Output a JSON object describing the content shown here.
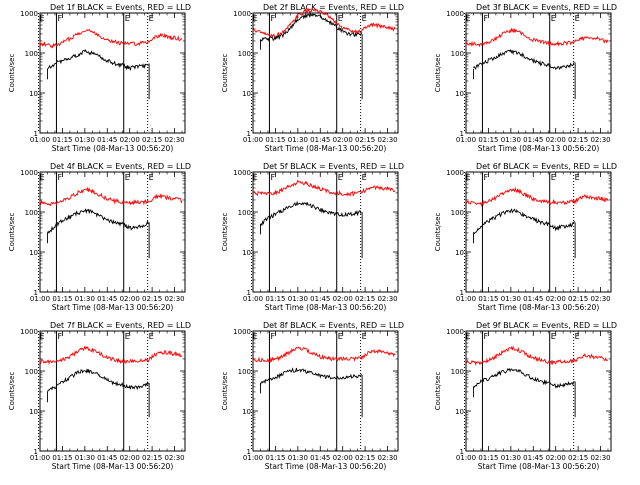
{
  "chart_data": {
    "type": "line",
    "ylabel": "Counts/sec",
    "xlabel": "Start Time (08-Mar-13 00:56:20)",
    "y_scale": "log",
    "ylim": [
      1,
      1000
    ],
    "y_ticks": [
      "1",
      "10",
      "100",
      "1000"
    ],
    "x_ticks": [
      "01:00",
      "01:15",
      "01:30",
      "01:45",
      "02:00",
      "02:15",
      "02:30"
    ],
    "xlim_minutes_after_0100": [
      0,
      97
    ],
    "colors": {
      "events": "#000000",
      "lld": "#ff0000"
    },
    "markers": [
      {
        "label": "E",
        "time": "00:59",
        "style": "dotted"
      },
      {
        "label": "F",
        "time": "01:11",
        "style": "solid"
      },
      {
        "label": "E",
        "time": "01:56",
        "style": "solid"
      },
      {
        "label": "E",
        "time": "02:12",
        "style": "dotted"
      }
    ],
    "panels": [
      {
        "title": "Det 1f BLACK = Events, RED = LLD",
        "time": [
          "01:00",
          "01:05",
          "01:10",
          "01:15",
          "01:20",
          "01:25",
          "01:30",
          "01:35",
          "01:40",
          "01:45",
          "01:50",
          "01:55",
          "02:00",
          "02:05",
          "02:10",
          "02:13",
          "02:15",
          "02:20",
          "02:25",
          "02:30",
          "02:35"
        ],
        "lld": [
          175,
          160,
          150,
          185,
          230,
          300,
          380,
          340,
          270,
          215,
          190,
          175,
          170,
          175,
          185,
          190,
          230,
          280,
          260,
          240,
          220
        ],
        "events": [
          null,
          40,
          55,
          65,
          75,
          90,
          110,
          100,
          80,
          65,
          55,
          50,
          42,
          45,
          48,
          55,
          null,
          null,
          null,
          null,
          null
        ]
      },
      {
        "title": "Det 2f BLACK = Events, RED = LLD",
        "time": [
          "01:00",
          "01:05",
          "01:10",
          "01:15",
          "01:20",
          "01:25",
          "01:30",
          "01:35",
          "01:40",
          "01:45",
          "01:50",
          "01:55",
          "02:00",
          "02:05",
          "02:10",
          "02:13",
          "02:15",
          "02:20",
          "02:25",
          "02:30",
          "02:35"
        ],
        "lld": [
          380,
          330,
          280,
          270,
          330,
          500,
          850,
          1100,
          1200,
          1050,
          850,
          600,
          420,
          380,
          330,
          360,
          420,
          500,
          480,
          440,
          400
        ],
        "events": [
          null,
          220,
          230,
          230,
          280,
          420,
          700,
          850,
          900,
          800,
          650,
          480,
          340,
          300,
          280,
          300,
          null,
          null,
          null,
          null,
          null
        ]
      },
      {
        "title": "Det 3f BLACK = Events, RED = LLD",
        "time": [
          "01:00",
          "01:05",
          "01:10",
          "01:15",
          "01:20",
          "01:25",
          "01:30",
          "01:35",
          "01:40",
          "01:45",
          "01:50",
          "01:55",
          "02:00",
          "02:05",
          "02:10",
          "02:13",
          "02:15",
          "02:20",
          "02:25",
          "02:30",
          "02:35"
        ],
        "lld": [
          175,
          170,
          165,
          190,
          230,
          300,
          370,
          340,
          270,
          215,
          190,
          175,
          175,
          175,
          180,
          190,
          215,
          250,
          240,
          220,
          190
        ],
        "events": [
          null,
          40,
          55,
          65,
          80,
          95,
          110,
          100,
          80,
          65,
          55,
          50,
          42,
          45,
          50,
          58,
          null,
          null,
          null,
          null,
          null
        ]
      },
      {
        "title": "Det 4f BLACK = Events, RED = LLD",
        "time": [
          "01:00",
          "01:05",
          "01:10",
          "01:15",
          "01:20",
          "01:25",
          "01:30",
          "01:35",
          "01:40",
          "01:45",
          "01:50",
          "01:55",
          "02:00",
          "02:05",
          "02:10",
          "02:13",
          "02:15",
          "02:20",
          "02:25",
          "02:30",
          "02:35"
        ],
        "lld": [
          175,
          165,
          160,
          190,
          230,
          300,
          370,
          340,
          270,
          215,
          190,
          175,
          175,
          175,
          180,
          185,
          215,
          250,
          230,
          220,
          190
        ],
        "events": [
          null,
          30,
          45,
          60,
          75,
          95,
          110,
          100,
          80,
          65,
          55,
          50,
          40,
          43,
          48,
          55,
          null,
          null,
          null,
          null,
          null
        ]
      },
      {
        "title": "Det 5f BLACK = Events, RED = LLD",
        "time": [
          "01:00",
          "01:05",
          "01:10",
          "01:15",
          "01:20",
          "01:25",
          "01:30",
          "01:35",
          "01:40",
          "01:45",
          "01:50",
          "01:55",
          "02:00",
          "02:05",
          "02:10",
          "02:13",
          "02:15",
          "02:20",
          "02:25",
          "02:30",
          "02:35"
        ],
        "lld": [
          300,
          290,
          285,
          300,
          360,
          460,
          560,
          530,
          450,
          380,
          330,
          300,
          290,
          285,
          300,
          310,
          360,
          430,
          400,
          380,
          340
        ],
        "events": [
          null,
          50,
          70,
          90,
          110,
          140,
          170,
          160,
          140,
          115,
          100,
          90,
          85,
          88,
          95,
          100,
          null,
          null,
          null,
          null,
          null
        ]
      },
      {
        "title": "Det 6f BLACK = Events, RED = LLD",
        "time": [
          "01:00",
          "01:05",
          "01:10",
          "01:15",
          "01:20",
          "01:25",
          "01:30",
          "01:35",
          "01:40",
          "01:45",
          "01:50",
          "01:55",
          "02:00",
          "02:05",
          "02:10",
          "02:13",
          "02:15",
          "02:20",
          "02:25",
          "02:30",
          "02:35"
        ],
        "lld": [
          175,
          165,
          160,
          185,
          230,
          300,
          370,
          340,
          270,
          215,
          190,
          175,
          175,
          175,
          180,
          185,
          215,
          250,
          230,
          220,
          190
        ],
        "events": [
          null,
          30,
          45,
          60,
          75,
          95,
          110,
          100,
          80,
          65,
          55,
          50,
          40,
          43,
          48,
          55,
          null,
          null,
          null,
          null,
          null
        ]
      },
      {
        "title": "Det 7f BLACK = Events, RED = LLD",
        "time": [
          "01:00",
          "01:05",
          "01:10",
          "01:15",
          "01:20",
          "01:25",
          "01:30",
          "01:35",
          "01:40",
          "01:45",
          "01:50",
          "01:55",
          "02:00",
          "02:05",
          "02:10",
          "02:13",
          "02:15",
          "02:20",
          "02:25",
          "02:30",
          "02:35"
        ],
        "lld": [
          175,
          175,
          170,
          190,
          230,
          300,
          380,
          340,
          270,
          215,
          190,
          175,
          175,
          175,
          185,
          195,
          230,
          300,
          290,
          270,
          240
        ],
        "events": [
          null,
          30,
          40,
          55,
          70,
          90,
          105,
          95,
          75,
          60,
          50,
          45,
          38,
          40,
          45,
          50,
          null,
          null,
          null,
          null,
          null
        ]
      },
      {
        "title": "Det 8f BLACK = Events, RED = LLD",
        "time": [
          "01:00",
          "01:05",
          "01:10",
          "01:15",
          "01:20",
          "01:25",
          "01:30",
          "01:35",
          "01:40",
          "01:45",
          "01:50",
          "01:55",
          "02:00",
          "02:05",
          "02:10",
          "02:13",
          "02:15",
          "02:20",
          "02:25",
          "02:30",
          "02:35"
        ],
        "lld": [
          190,
          190,
          185,
          200,
          240,
          300,
          380,
          340,
          270,
          230,
          210,
          200,
          200,
          200,
          210,
          220,
          260,
          320,
          300,
          280,
          250
        ],
        "events": [
          null,
          50,
          60,
          70,
          85,
          100,
          110,
          100,
          85,
          75,
          70,
          70,
          70,
          72,
          75,
          80,
          null,
          null,
          null,
          null,
          null
        ]
      },
      {
        "title": "Det 9f BLACK = Events, RED = LLD",
        "time": [
          "01:00",
          "01:05",
          "01:10",
          "01:15",
          "01:20",
          "01:25",
          "01:30",
          "01:35",
          "01:40",
          "01:45",
          "01:50",
          "01:55",
          "02:00",
          "02:05",
          "02:10",
          "02:13",
          "02:15",
          "02:20",
          "02:25",
          "02:30",
          "02:35"
        ],
        "lld": [
          170,
          165,
          160,
          185,
          230,
          300,
          370,
          340,
          270,
          215,
          190,
          170,
          170,
          170,
          175,
          185,
          210,
          245,
          230,
          215,
          190
        ],
        "events": [
          null,
          40,
          55,
          65,
          80,
          95,
          110,
          100,
          80,
          65,
          55,
          50,
          42,
          45,
          48,
          55,
          null,
          null,
          null,
          null,
          null
        ]
      }
    ]
  }
}
